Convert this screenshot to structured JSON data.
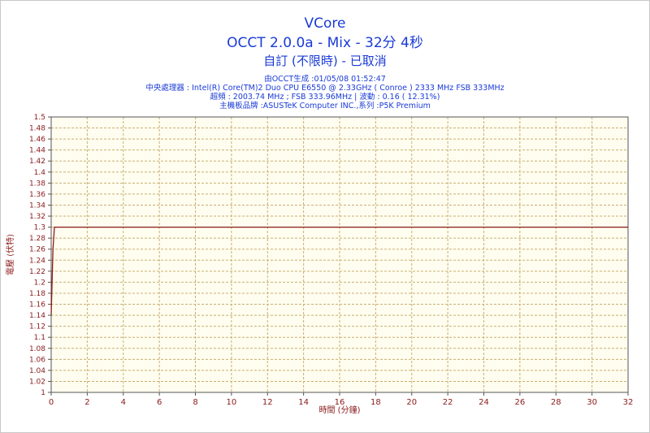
{
  "chart_data": {
    "type": "line",
    "title": "VCore",
    "subtitle": "OCCT 2.0.0a - Mix - 32分 4秒",
    "subtitle2": "自訂 (不限時) - 已取消",
    "info_lines": [
      "由OCCT生成 :01/05/08 01:52:47",
      "中央處理器 : Intel(R) Core(TM)2 Duo CPU E6550 @ 2.33GHz ( Conroe ) 2333 MHz FSB 333MHz",
      "超頻 : 2003.74 MHz ; FSB 333.96MHz | 波動 : 0.16 ( 12.31%)",
      "主機板品牌 :ASUSTeK Computer INC.,系列 :P5K Premium"
    ],
    "xlabel": "時間 (分鐘)",
    "ylabel": "電壓 (伏特)",
    "xlim": [
      0,
      32
    ],
    "ylim": [
      1,
      1.5
    ],
    "xticks": [
      "0",
      "2",
      "4",
      "6",
      "8",
      "10",
      "12",
      "14",
      "16",
      "18",
      "20",
      "22",
      "24",
      "26",
      "28",
      "30",
      "32"
    ],
    "yticks": [
      "1",
      "1.02",
      "1.04",
      "1.06",
      "1.08",
      "1.1",
      "1.12",
      "1.14",
      "1.16",
      "1.18",
      "1.2",
      "1.22",
      "1.24",
      "1.26",
      "1.28",
      "1.3",
      "1.32",
      "1.34",
      "1.36",
      "1.38",
      "1.4",
      "1.42",
      "1.44",
      "1.46",
      "1.48",
      "1.5"
    ],
    "grid": true,
    "series": [
      {
        "x": [
          0,
          0.05,
          0.1,
          0.18,
          0.25,
          32
        ],
        "y": [
          1.14,
          1.2,
          1.26,
          1.3,
          1.3,
          1.3
        ]
      }
    ],
    "colors": {
      "line": "#8b1a1a",
      "plot_bg": "#fffdf0",
      "grid": "#c8b070",
      "title": "#1a3bd6",
      "axis_text": "#8b1a1a"
    }
  }
}
